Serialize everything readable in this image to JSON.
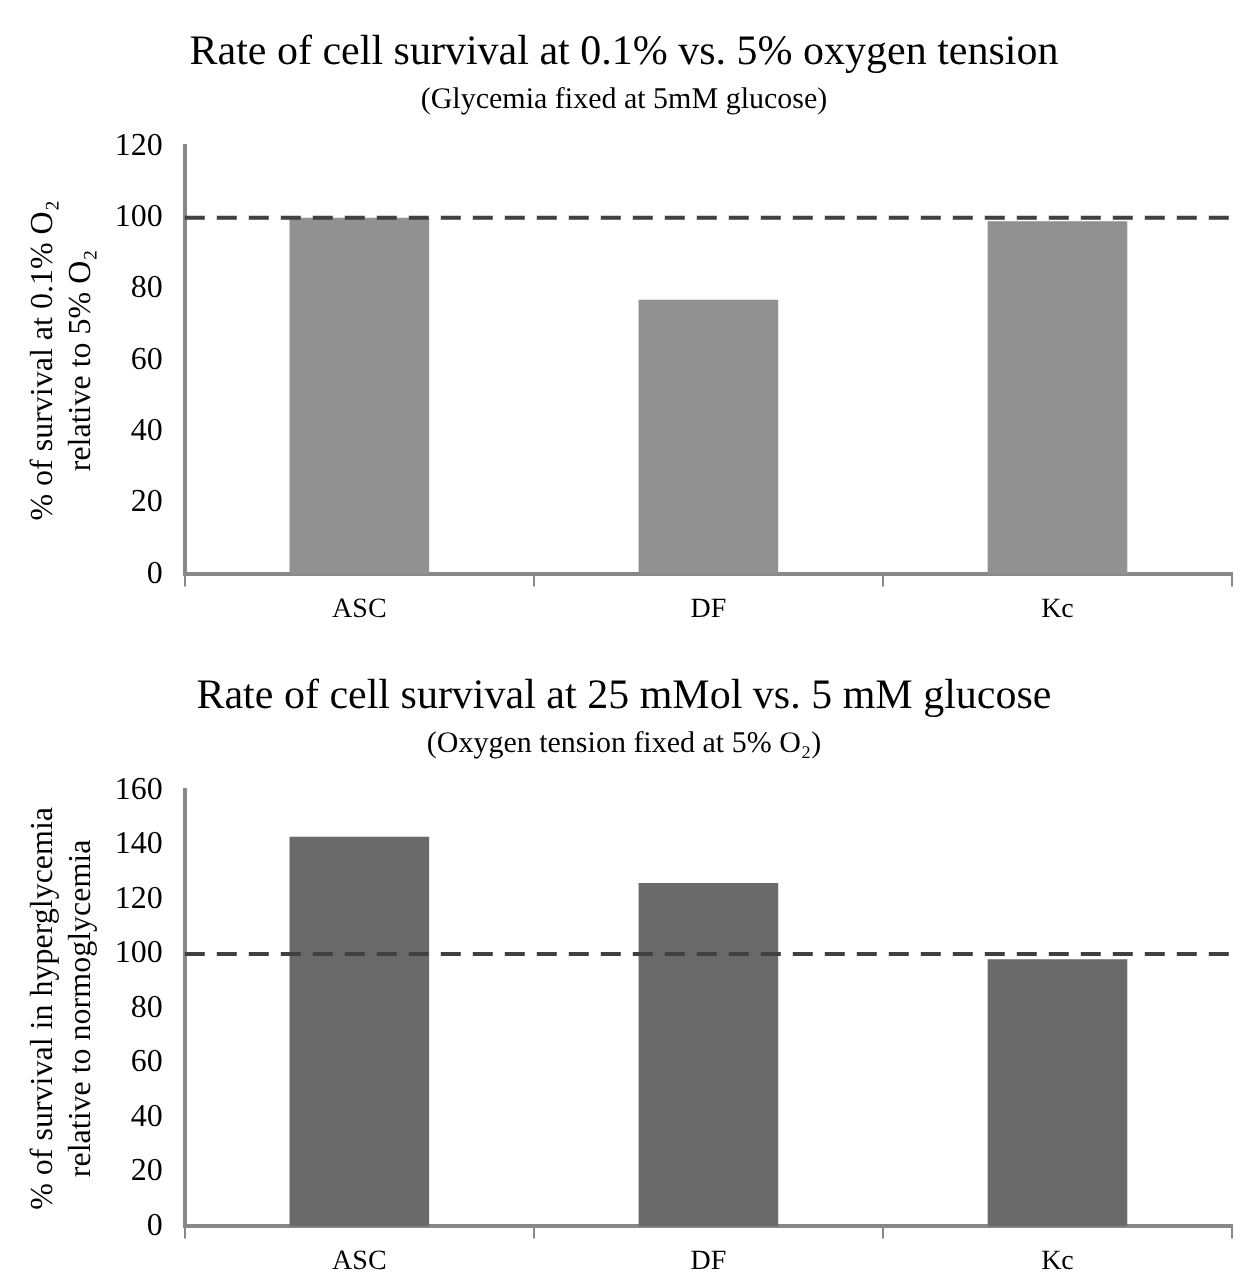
{
  "chart_data": [
    {
      "type": "bar",
      "title": "Rate of cell survival at 0.1% vs. 5% oxygen tension",
      "subtitle": "(Glycemia fixed at 5mM glucose)",
      "ylabel": "% of survival at 0.1% O₂\nrelative to 5% O₂",
      "categories": [
        "ASC",
        "DF",
        "Kc"
      ],
      "values": [
        100,
        77,
        99
      ],
      "color": "#919191",
      "ylim": [
        0,
        120
      ],
      "yticks": [
        0,
        20,
        40,
        60,
        80,
        100,
        120
      ],
      "ref_lines": [
        {
          "axis": "y",
          "value": 100,
          "color": "#404040",
          "line_style": "dashed"
        }
      ]
    },
    {
      "type": "bar",
      "title": "Rate of cell survival at 25 mMol vs. 5 mM glucose",
      "subtitle": "(Oxygen tension fixed at 5% O₂)",
      "ylabel": "% of survival in hyperglycemia\nrelative to normoglycemia",
      "categories": [
        "ASC",
        "DF",
        "Kc"
      ],
      "values": [
        143,
        126,
        98
      ],
      "color": "#6a6a6a",
      "ylim": [
        0,
        160
      ],
      "yticks": [
        0,
        20,
        40,
        60,
        80,
        100,
        120,
        140,
        160
      ],
      "ref_lines": [
        {
          "axis": "y",
          "value": 100,
          "color": "#404040",
          "line_style": "dashed"
        }
      ]
    }
  ]
}
